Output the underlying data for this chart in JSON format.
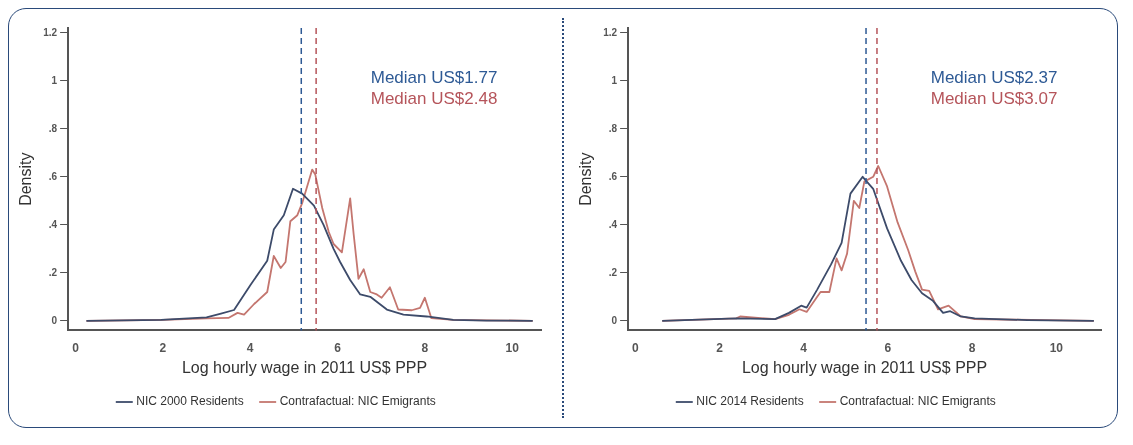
{
  "chart_data": [
    {
      "type": "line",
      "xlabel": "Log hourly wage in 2011 US$ PPP",
      "ylabel": "Density",
      "xlim": [
        -0.17,
        10.66
      ],
      "xticks": [
        0,
        2,
        4,
        6,
        8,
        10
      ],
      "ylim": [
        -0.04,
        1.22
      ],
      "yticks": [
        {
          "value": 0,
          "label": "0"
        },
        {
          "value": 0.2,
          "label": ".2"
        },
        {
          "value": 0.4,
          "label": ".4"
        },
        {
          "value": 0.6,
          "label": ".6"
        },
        {
          "value": 0.8,
          "label": ".8"
        },
        {
          "value": 1,
          "label": "1"
        },
        {
          "value": 1.2,
          "label": "1.2"
        }
      ],
      "grid": false,
      "legend": "bottom",
      "marker": "none",
      "line_style": "solid",
      "series": [
        {
          "name": "NIC 2000 Residents",
          "color": "#3d4b6a",
          "x": [
            0.25,
            1.96,
            3.0,
            3.33,
            3.63,
            4.01,
            4.39,
            4.54,
            4.77,
            4.98,
            5.19,
            5.46,
            5.68,
            5.91,
            6.06,
            6.29,
            6.52,
            6.75,
            7.13,
            7.51,
            8.04,
            8.65,
            9.41,
            10.47
          ],
          "values": [
            0,
            0.004,
            0.014,
            0.03,
            0.045,
            0.15,
            0.25,
            0.38,
            0.44,
            0.55,
            0.53,
            0.48,
            0.4,
            0.3,
            0.245,
            0.17,
            0.11,
            0.1,
            0.047,
            0.026,
            0.018,
            0.004,
            0.001,
            0
          ]
        },
        {
          "name": "Contrafactual: NIC Emigrants",
          "color": "#c4766f",
          "x": [
            0.25,
            2.0,
            3.0,
            3.5,
            3.71,
            3.86,
            4.09,
            4.39,
            4.54,
            4.7,
            4.81,
            4.92,
            5.08,
            5.19,
            5.42,
            5.49,
            5.65,
            5.8,
            5.91,
            6.1,
            6.29,
            6.37,
            6.48,
            6.6,
            6.75,
            6.9,
            7.01,
            7.2,
            7.39,
            7.7,
            7.89,
            8.0,
            8.15,
            8.65,
            10.47
          ],
          "values": [
            0,
            0.004,
            0.01,
            0.012,
            0.033,
            0.026,
            0.07,
            0.12,
            0.27,
            0.22,
            0.245,
            0.415,
            0.44,
            0.49,
            0.63,
            0.61,
            0.47,
            0.37,
            0.32,
            0.285,
            0.51,
            0.36,
            0.175,
            0.215,
            0.12,
            0.11,
            0.096,
            0.14,
            0.047,
            0.044,
            0.054,
            0.096,
            0.011,
            0.004,
            0
          ]
        }
      ],
      "ref_lines": [
        {
          "axis": "x",
          "value": 5.17,
          "label": "Median US$1.77",
          "color": "#2e5a95",
          "line_style": "dashed"
        },
        {
          "axis": "x",
          "value": 5.51,
          "label": "Median US$2.48",
          "color": "#b5545a",
          "line_style": "dashed"
        }
      ]
    },
    {
      "type": "line",
      "xlabel": "Log hourly wage in 2011 US$ PPP",
      "ylabel": "Density",
      "xlim": [
        -0.17,
        11.06
      ],
      "xticks": [
        0,
        2,
        4,
        6,
        8,
        10
      ],
      "ylim": [
        -0.04,
        1.22
      ],
      "yticks": [
        {
          "value": 0,
          "label": "0"
        },
        {
          "value": 0.2,
          "label": ".2"
        },
        {
          "value": 0.4,
          "label": ".4"
        },
        {
          "value": 0.6,
          "label": ".6"
        },
        {
          "value": 0.8,
          "label": ".8"
        },
        {
          "value": 1,
          "label": "1"
        },
        {
          "value": 1.2,
          "label": "1.2"
        }
      ],
      "grid": false,
      "legend": "bottom",
      "marker": "none",
      "line_style": "solid",
      "series": [
        {
          "name": "NIC 2014 Residents",
          "color": "#3d4b6a",
          "x": [
            0.64,
            2.4,
            3.32,
            3.65,
            3.94,
            4.07,
            4.32,
            4.65,
            4.9,
            5.11,
            5.4,
            5.65,
            5.98,
            6.31,
            6.56,
            6.81,
            7.06,
            7.31,
            7.48,
            7.73,
            8.06,
            9.31,
            10.89
          ],
          "values": [
            0,
            0.01,
            0.007,
            0.033,
            0.063,
            0.055,
            0.13,
            0.235,
            0.325,
            0.53,
            0.6,
            0.55,
            0.385,
            0.25,
            0.17,
            0.115,
            0.085,
            0.033,
            0.04,
            0.018,
            0.01,
            0.003,
            0
          ]
        },
        {
          "name": "Contrafactual: NIC Emigrants",
          "color": "#c4766f",
          "x": [
            0.64,
            2.4,
            2.49,
            3.32,
            3.65,
            3.9,
            4.07,
            4.32,
            4.4,
            4.61,
            4.78,
            4.9,
            5.03,
            5.19,
            5.32,
            5.44,
            5.65,
            5.77,
            5.98,
            6.23,
            6.48,
            6.65,
            6.81,
            6.98,
            7.19,
            7.44,
            7.73,
            8.06,
            10.89
          ],
          "values": [
            0,
            0.01,
            0.018,
            0.007,
            0.025,
            0.048,
            0.037,
            0.1,
            0.12,
            0.12,
            0.26,
            0.21,
            0.28,
            0.5,
            0.47,
            0.58,
            0.6,
            0.645,
            0.56,
            0.41,
            0.295,
            0.205,
            0.13,
            0.125,
            0.048,
            0.063,
            0.018,
            0.007,
            0
          ]
        }
      ],
      "ref_lines": [
        {
          "axis": "x",
          "value": 5.48,
          "label": "Median US$2.37",
          "color": "#2e5a95",
          "line_style": "dashed"
        },
        {
          "axis": "x",
          "value": 5.74,
          "label": "Median US$3.07",
          "color": "#b5545a",
          "line_style": "dashed"
        }
      ]
    }
  ]
}
